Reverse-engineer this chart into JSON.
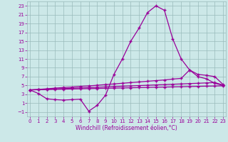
{
  "title": "",
  "xlabel": "Windchill (Refroidissement éolien,°C)",
  "x_values": [
    0,
    1,
    2,
    3,
    4,
    5,
    6,
    7,
    8,
    9,
    10,
    11,
    12,
    13,
    14,
    15,
    16,
    17,
    18,
    19,
    20,
    21,
    22,
    23
  ],
  "line1_y": [
    4,
    3.2,
    2.0,
    1.8,
    1.7,
    1.8,
    1.9,
    -0.8,
    0.5,
    2.8,
    7.5,
    11,
    15,
    18,
    21.5,
    23,
    22,
    15.5,
    11,
    8.5,
    7.0,
    6.5,
    5.5,
    5.0
  ],
  "line2_y": [
    4.0,
    4.1,
    4.25,
    4.4,
    4.55,
    4.65,
    4.8,
    4.9,
    5.05,
    5.2,
    5.35,
    5.5,
    5.65,
    5.8,
    5.95,
    6.1,
    6.25,
    6.45,
    6.6,
    8.5,
    7.5,
    7.3,
    7.0,
    5.2
  ],
  "line3_y": [
    4.0,
    4.08,
    4.15,
    4.22,
    4.3,
    4.38,
    4.45,
    4.52,
    4.6,
    4.68,
    4.75,
    4.83,
    4.9,
    4.98,
    5.05,
    5.13,
    5.2,
    5.28,
    5.35,
    5.43,
    5.5,
    5.58,
    5.65,
    5.1
  ],
  "line4_y": [
    4.0,
    4.04,
    4.08,
    4.12,
    4.16,
    4.2,
    4.24,
    4.28,
    4.32,
    4.36,
    4.4,
    4.44,
    4.48,
    4.52,
    4.56,
    4.6,
    4.64,
    4.68,
    4.72,
    4.76,
    4.8,
    4.84,
    4.88,
    4.92
  ],
  "line_color": "#990099",
  "bg_color": "#cce8e8",
  "grid_color": "#99bbbb",
  "ylim": [
    -2,
    24
  ],
  "yticks": [
    -1,
    1,
    3,
    5,
    7,
    9,
    11,
    13,
    15,
    17,
    19,
    21,
    23
  ],
  "xticks": [
    0,
    1,
    2,
    3,
    4,
    5,
    6,
    7,
    8,
    9,
    10,
    11,
    12,
    13,
    14,
    15,
    16,
    17,
    18,
    19,
    20,
    21,
    22,
    23
  ]
}
